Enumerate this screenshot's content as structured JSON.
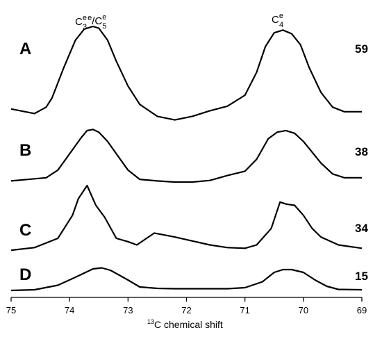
{
  "chart_data": {
    "type": "line",
    "title": "",
    "xlabel": {
      "prefix_sup": "13",
      "text": "C chemical shift"
    },
    "ylabel": "",
    "xlim": [
      75,
      69
    ],
    "x_reversed": true,
    "x_ticks": [
      75,
      74,
      73,
      72,
      71,
      70,
      69
    ],
    "peak_labels": [
      {
        "text": "C",
        "sup": "e",
        "sub": "3",
        "sep": "/C",
        "sup2": "e",
        "sub2": "5",
        "x": 73.5
      },
      {
        "text": "C",
        "sup": "e",
        "sub": "4",
        "x": 70.25
      }
    ],
    "series": [
      {
        "name": "A",
        "value_label": "59",
        "baseline_offset": 3,
        "x": [
          75,
          74.6,
          74.4,
          74.3,
          74.1,
          73.9,
          73.75,
          73.6,
          73.5,
          73.35,
          73.2,
          73.0,
          72.8,
          72.5,
          72.2,
          71.9,
          71.6,
          71.3,
          71.0,
          70.8,
          70.65,
          70.5,
          70.35,
          70.2,
          70.05,
          69.9,
          69.7,
          69.5,
          69.3,
          69.0
        ],
        "values": [
          0.1,
          0.05,
          0.12,
          0.22,
          0.55,
          0.85,
          0.97,
          1.0,
          0.98,
          0.85,
          0.62,
          0.35,
          0.15,
          0.02,
          -0.02,
          0.02,
          0.08,
          0.13,
          0.25,
          0.5,
          0.78,
          0.93,
          0.96,
          0.92,
          0.8,
          0.55,
          0.28,
          0.12,
          0.07,
          0.07
        ]
      },
      {
        "name": "B",
        "value_label": "38",
        "baseline_offset": 2,
        "x": [
          75,
          74.6,
          74.4,
          74.2,
          74.0,
          73.8,
          73.7,
          73.6,
          73.5,
          73.35,
          73.2,
          73.0,
          72.8,
          72.5,
          72.2,
          71.9,
          71.6,
          71.3,
          71.0,
          70.8,
          70.6,
          70.45,
          70.3,
          70.15,
          70.0,
          69.85,
          69.7,
          69.5,
          69.3,
          69.0
        ],
        "values": [
          0.02,
          0.06,
          0.08,
          0.22,
          0.52,
          0.82,
          0.95,
          0.97,
          0.92,
          0.75,
          0.52,
          0.22,
          0.05,
          0.02,
          0.0,
          0.0,
          0.03,
          0.12,
          0.2,
          0.42,
          0.8,
          0.92,
          0.95,
          0.9,
          0.75,
          0.55,
          0.35,
          0.15,
          0.08,
          0.08
        ]
      },
      {
        "name": "C",
        "value_label": "34",
        "baseline_offset": 1,
        "x": [
          75,
          74.6,
          74.2,
          73.95,
          73.85,
          73.7,
          73.55,
          73.4,
          73.2,
          73.0,
          72.85,
          72.55,
          72.2,
          71.9,
          71.6,
          71.3,
          71.0,
          70.8,
          70.55,
          70.4,
          70.3,
          70.15,
          70.0,
          69.85,
          69.7,
          69.4,
          69.0
        ],
        "values": [
          0.02,
          0.06,
          0.2,
          0.55,
          0.8,
          1.0,
          0.7,
          0.52,
          0.2,
          0.15,
          0.1,
          0.28,
          0.22,
          0.16,
          0.1,
          0.06,
          0.05,
          0.1,
          0.35,
          0.75,
          0.72,
          0.7,
          0.55,
          0.35,
          0.22,
          0.1,
          0.05
        ]
      },
      {
        "name": "D",
        "value_label": "15",
        "baseline_offset": 0,
        "x": [
          75,
          74.6,
          74.2,
          73.9,
          73.6,
          73.45,
          73.3,
          73.0,
          72.8,
          72.5,
          72.2,
          71.9,
          71.6,
          71.3,
          71.0,
          70.7,
          70.5,
          70.35,
          70.2,
          70.0,
          69.8,
          69.6,
          69.4,
          69.0
        ],
        "values": [
          0.0,
          0.02,
          0.15,
          0.38,
          0.62,
          0.65,
          0.58,
          0.3,
          0.1,
          0.06,
          0.05,
          0.05,
          0.05,
          0.05,
          0.08,
          0.25,
          0.52,
          0.6,
          0.6,
          0.52,
          0.3,
          0.12,
          0.03,
          0.02
        ]
      }
    ]
  }
}
